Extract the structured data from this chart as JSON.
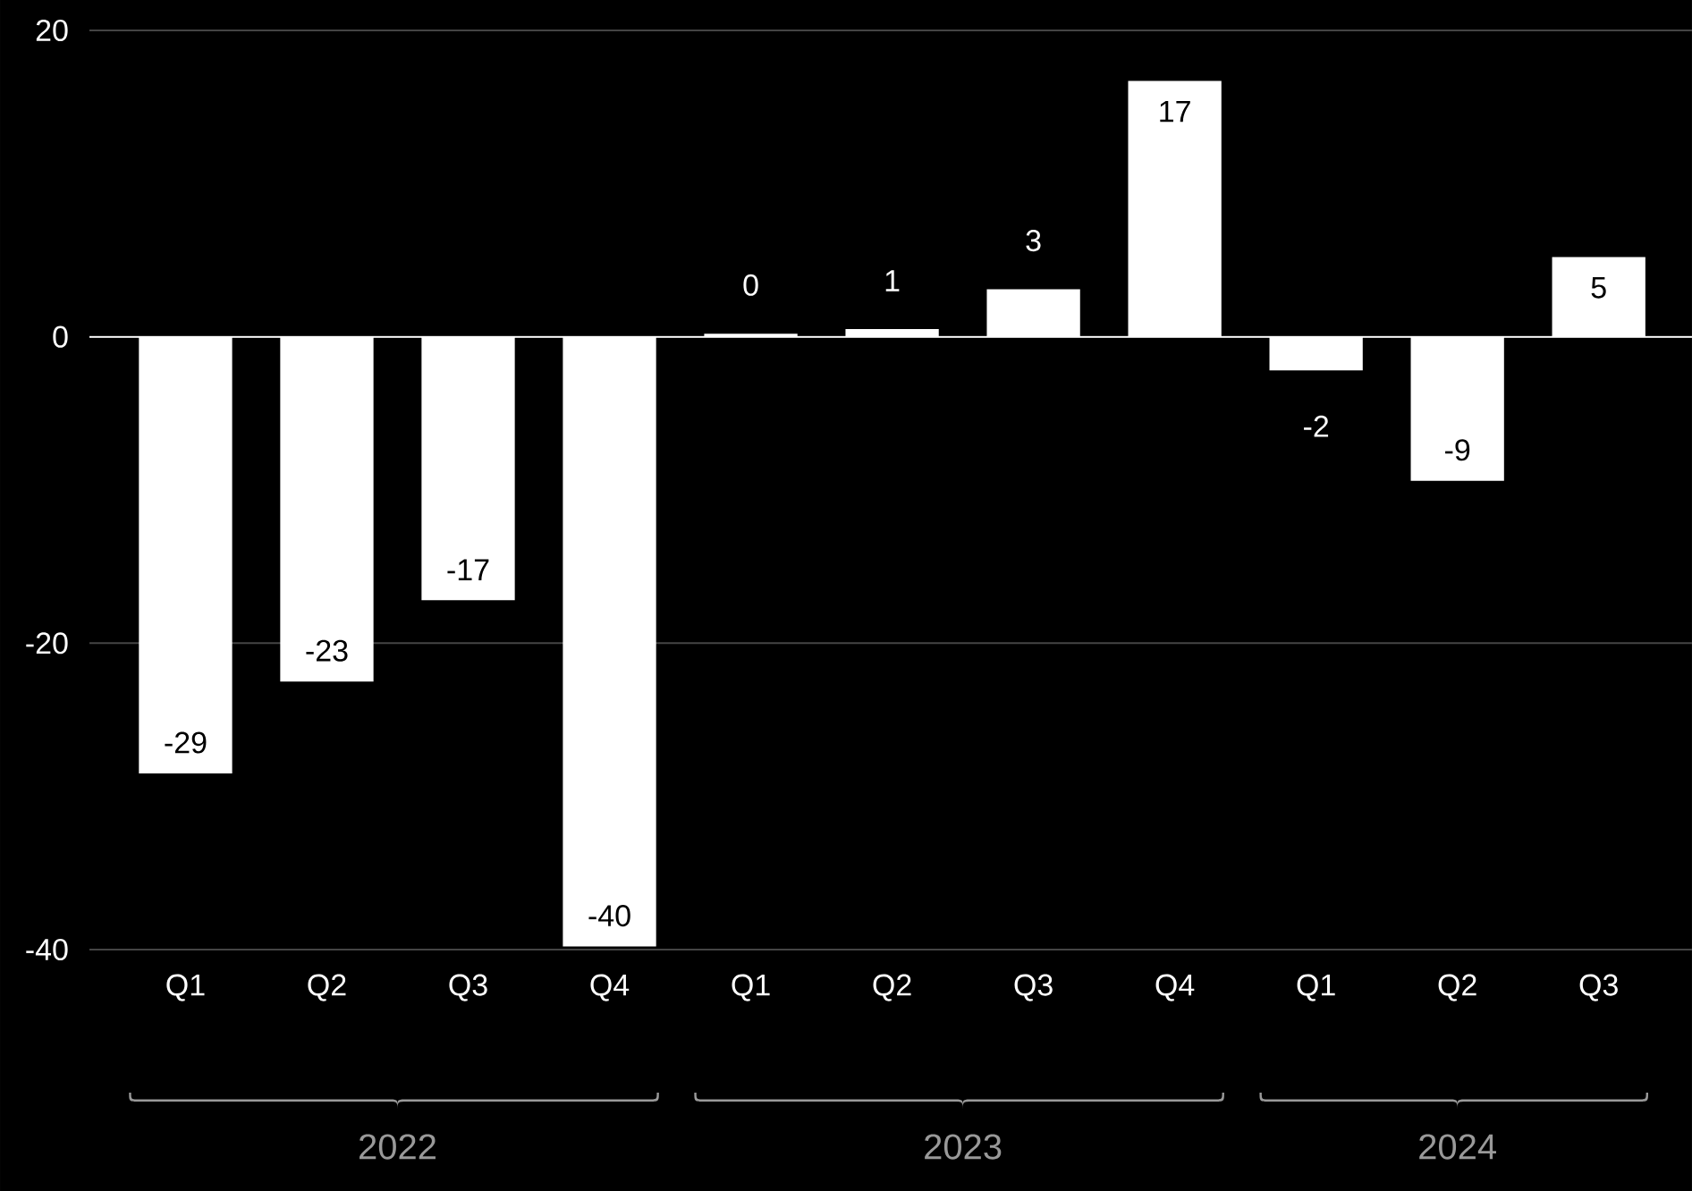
{
  "chart_data": {
    "type": "bar",
    "categories": [
      "Q1",
      "Q2",
      "Q3",
      "Q4",
      "Q1",
      "Q2",
      "Q3",
      "Q4",
      "Q1",
      "Q2",
      "Q3"
    ],
    "values": [
      -28.5,
      -22.5,
      -17.2,
      -39.8,
      0.2,
      0.5,
      3.1,
      16.7,
      -2.2,
      -9.4,
      5.2
    ],
    "value_labels": [
      "-29",
      "-23",
      "-17",
      "-40",
      "0",
      "1",
      "3",
      "17",
      "-2",
      "-9",
      "5"
    ],
    "color": "#ffffff",
    "ylim": [
      -40,
      20
    ],
    "yticks": [
      -40,
      -20,
      0,
      20
    ],
    "grid": "y",
    "annotations": [
      "2022",
      "2023",
      "2024"
    ]
  }
}
